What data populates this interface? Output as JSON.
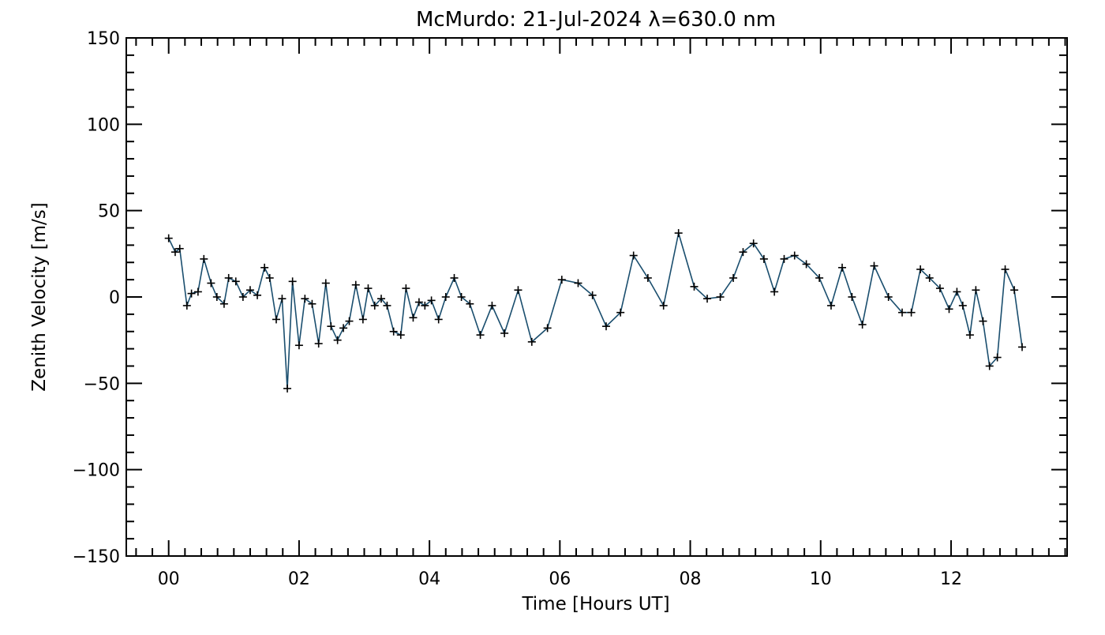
{
  "chart_data": {
    "type": "line",
    "title": "McMurdo: 21-Jul-2024 λ=630.0 nm",
    "xlabel": "Time [Hours UT]",
    "ylabel": "Zenith Velocity [m/s]",
    "xlim": [
      -0.65,
      13.78
    ],
    "ylim": [
      -150,
      150
    ],
    "x_ticks": [
      0,
      2,
      4,
      6,
      8,
      10,
      12
    ],
    "x_tick_labels": [
      "00",
      "02",
      "04",
      "06",
      "08",
      "10",
      "12"
    ],
    "y_ticks": [
      -150,
      -100,
      -50,
      0,
      50,
      100,
      150
    ],
    "y_tick_labels": [
      "−150",
      "−100",
      "−50",
      "0",
      "50",
      "100",
      "150"
    ],
    "grid": false,
    "line_color": "#1a4e6e",
    "marker_color": "#000000",
    "series": [
      {
        "name": "Zenith Velocity",
        "x": [
          0.0,
          0.1,
          0.17,
          0.28,
          0.35,
          0.45,
          0.54,
          0.65,
          0.74,
          0.85,
          0.92,
          1.03,
          1.14,
          1.25,
          1.36,
          1.47,
          1.55,
          1.65,
          1.74,
          1.82,
          1.9,
          2.0,
          2.09,
          2.2,
          2.3,
          2.41,
          2.49,
          2.59,
          2.68,
          2.77,
          2.87,
          2.98,
          3.06,
          3.16,
          3.26,
          3.35,
          3.45,
          3.56,
          3.64,
          3.75,
          3.84,
          3.93,
          4.03,
          4.14,
          4.25,
          4.38,
          4.49,
          4.62,
          4.78,
          4.96,
          5.15,
          5.36,
          5.57,
          5.81,
          6.03,
          6.28,
          6.5,
          6.71,
          6.93,
          7.13,
          7.35,
          7.59,
          7.82,
          8.06,
          8.26,
          8.46,
          8.66,
          8.81,
          8.97,
          9.13,
          9.29,
          9.44,
          9.6,
          9.78,
          9.98,
          10.16,
          10.33,
          10.48,
          10.64,
          10.82,
          11.04,
          11.25,
          11.39,
          11.53,
          11.67,
          11.83,
          11.97,
          12.09,
          12.18,
          12.29,
          12.38,
          12.49,
          12.59,
          12.71,
          12.83,
          12.97,
          13.09
        ],
        "y": [
          34,
          26,
          28,
          -5,
          2,
          3,
          22,
          8,
          0,
          -4,
          11,
          9,
          0,
          4,
          1,
          17,
          11,
          -13,
          -1,
          -53,
          9,
          -28,
          -1,
          -4,
          -27,
          8,
          -17,
          -25,
          -18,
          -14,
          7,
          -13,
          5,
          -5,
          -1,
          -5,
          -20,
          -22,
          5,
          -12,
          -3,
          -5,
          -2,
          -13,
          0,
          11,
          0,
          -4,
          -22,
          -5,
          -21,
          4,
          -26,
          -18,
          10,
          8,
          1,
          -17,
          -9,
          24,
          11,
          -5,
          37,
          6,
          -1,
          0,
          11,
          26,
          31,
          22,
          3,
          22,
          24,
          19,
          11,
          -5,
          17,
          0,
          -16,
          18,
          0,
          -9,
          -9,
          16,
          11,
          5,
          -7,
          3,
          -5,
          -22,
          4,
          -14,
          -40,
          -35,
          16,
          4,
          -29
        ]
      }
    ]
  }
}
